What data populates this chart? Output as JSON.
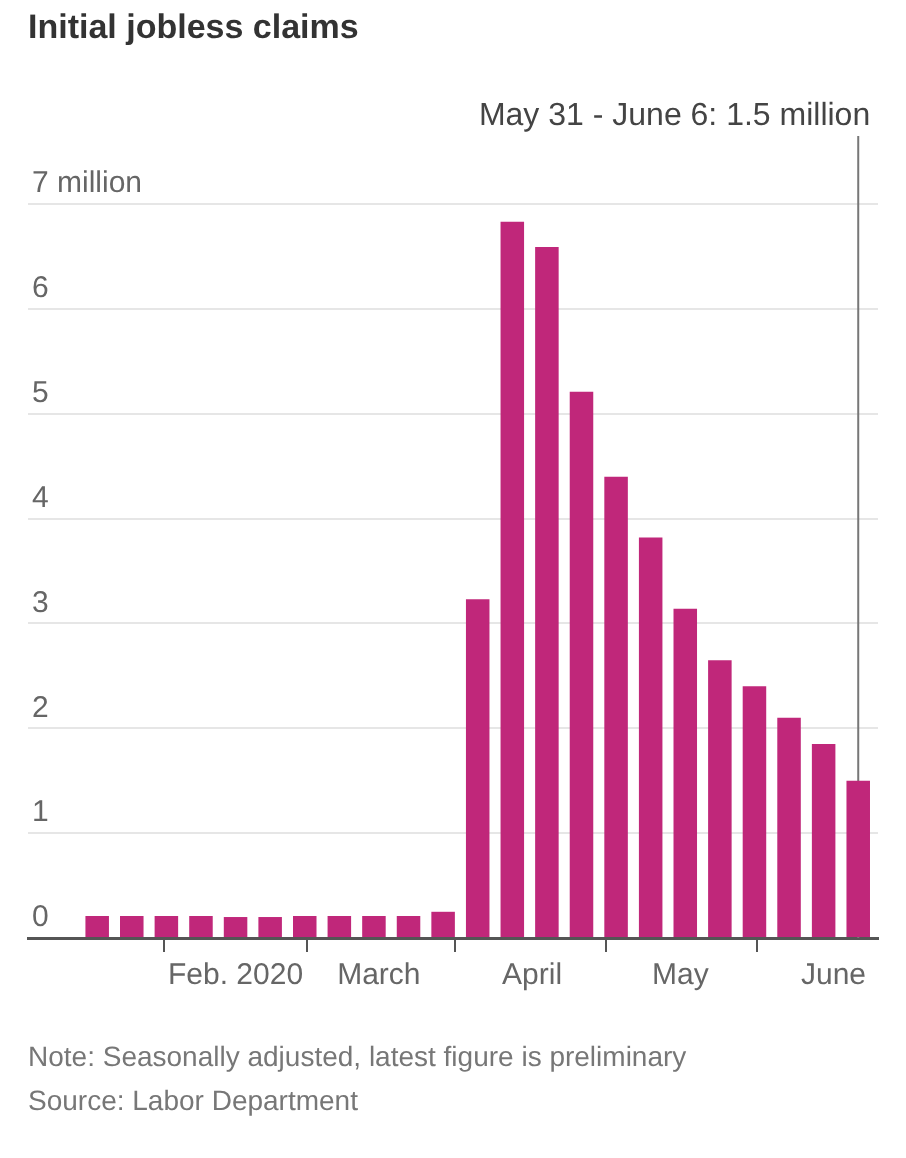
{
  "chart_data": {
    "type": "bar",
    "title": "Initial jobless claims",
    "x": [
      "2020-01-04",
      "2020-01-11",
      "2020-01-18",
      "2020-01-25",
      "2020-02-01",
      "2020-02-08",
      "2020-02-15",
      "2020-02-22",
      "2020-02-29",
      "2020-03-07",
      "2020-03-14",
      "2020-03-21",
      "2020-03-28",
      "2020-04-04",
      "2020-04-11",
      "2020-04-18",
      "2020-04-25",
      "2020-05-02",
      "2020-05-09",
      "2020-05-16",
      "2020-05-23",
      "2020-05-30",
      "2020-06-06"
    ],
    "values": [
      0.21,
      0.21,
      0.21,
      0.21,
      0.2,
      0.2,
      0.21,
      0.21,
      0.21,
      0.21,
      0.25,
      3.23,
      6.83,
      6.59,
      5.21,
      4.4,
      3.82,
      3.14,
      2.65,
      2.4,
      2.1,
      1.85,
      1.5
    ],
    "color": "#c0277a",
    "xlim": [
      "2019-12-21",
      "2020-06-10"
    ],
    "xticks": [
      {
        "value": "2020-02-01",
        "label": "Feb. 2020"
      },
      {
        "value": "2020-03-01",
        "label": "March"
      },
      {
        "value": "2020-04-01",
        "label": "April"
      },
      {
        "value": "2020-05-01",
        "label": "May"
      },
      {
        "value": "2020-06-01",
        "label": "June"
      }
    ],
    "ylim": [
      0,
      7
    ],
    "yticks": [
      0,
      1,
      2,
      3,
      4,
      5,
      6,
      {
        "value": 7,
        "label": "7 million"
      }
    ],
    "grid": "y",
    "legend": false,
    "ref_lines": [
      {
        "axis": "x",
        "value": "2020-06-06",
        "label": "May 31 - June 6: 1.5 million",
        "color": "#777777"
      }
    ],
    "annotations": [
      "Note: Seasonally adjusted, latest figure is preliminary",
      "Source: Labor Department"
    ]
  }
}
